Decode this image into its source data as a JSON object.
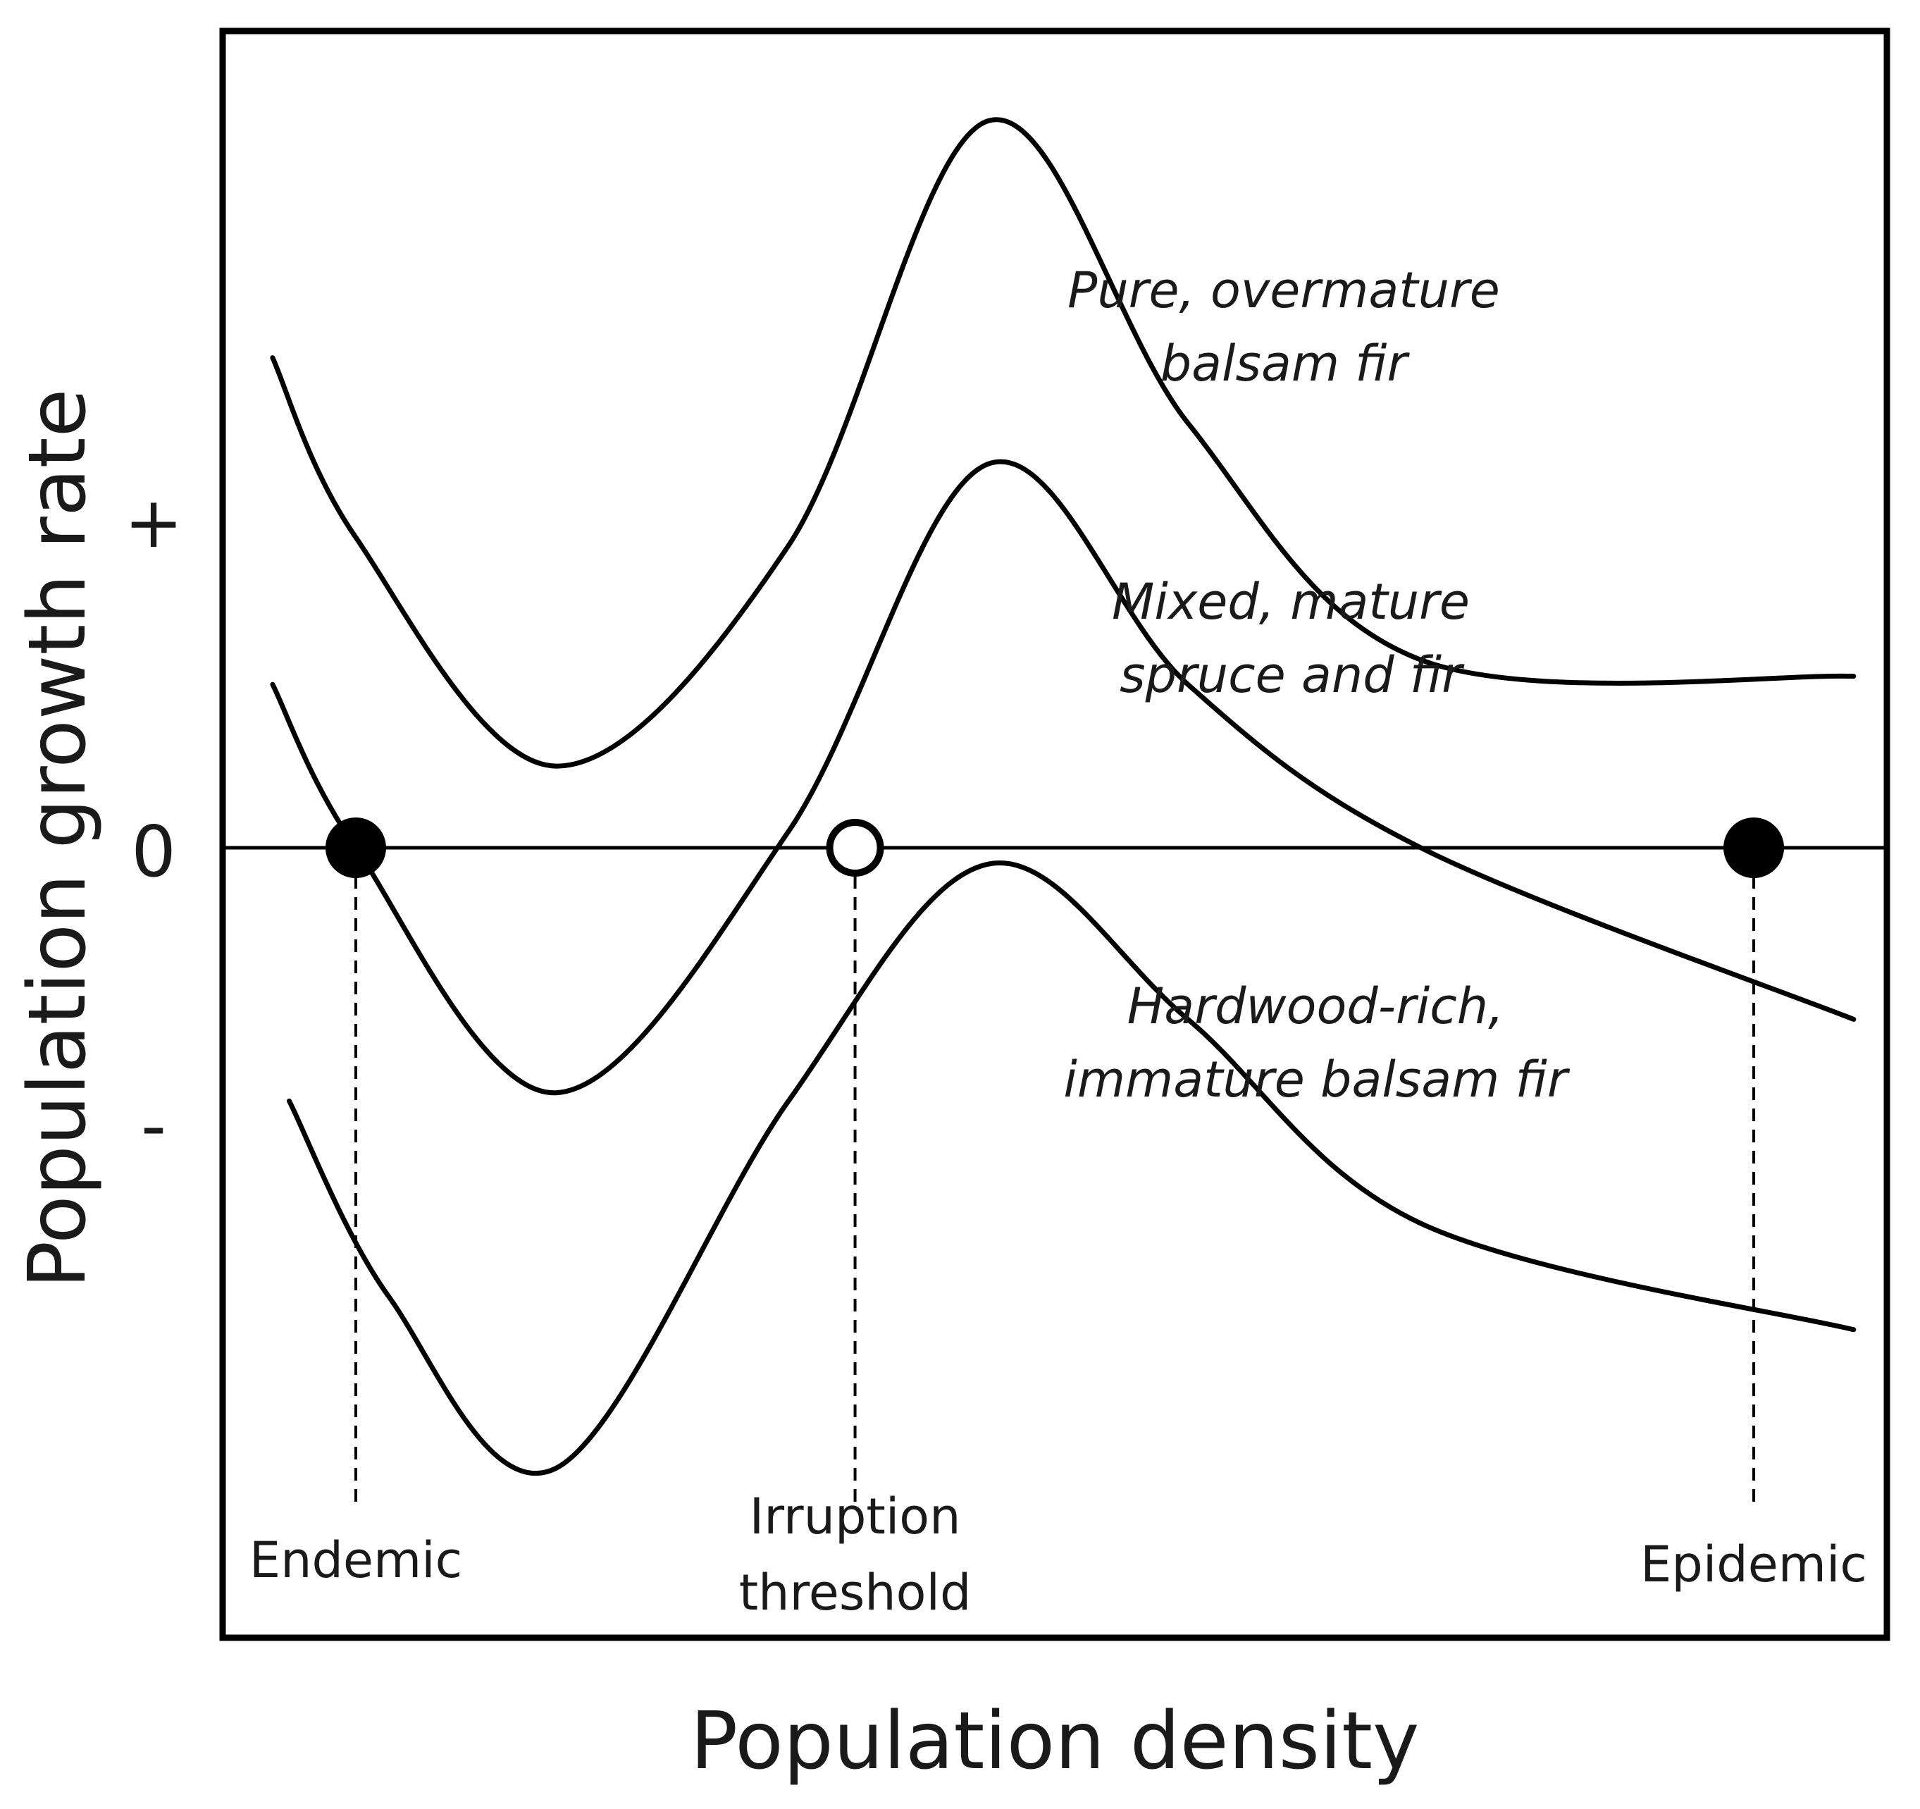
{
  "chart_data": {
    "type": "line",
    "title": "",
    "xlabel": "Population density",
    "ylabel": "Population growth rate",
    "y_ticks": [
      "+",
      "0",
      "-"
    ],
    "xlim": [
      0,
      100
    ],
    "ylim": [
      -100,
      100
    ],
    "grid": false,
    "legend": "none",
    "series": [
      {
        "name": "Pure, overmature balsam fir",
        "label_lines": [
          "Pure, overmature",
          "balsam fir"
        ],
        "points": [
          [
            3,
            60
          ],
          [
            8,
            38
          ],
          [
            20,
            10
          ],
          [
            34,
            37
          ],
          [
            46,
            89
          ],
          [
            58,
            52
          ],
          [
            72,
            23
          ],
          [
            98,
            21
          ]
        ]
      },
      {
        "name": "Mixed, mature spruce and fir",
        "label_lines": [
          "Mixed, mature",
          "spruce and fir"
        ],
        "points": [
          [
            3,
            20
          ],
          [
            8,
            0
          ],
          [
            20,
            -30
          ],
          [
            34,
            2
          ],
          [
            46,
            47
          ],
          [
            58,
            20
          ],
          [
            72,
            0
          ],
          [
            98,
            -21
          ]
        ]
      },
      {
        "name": "Hardwood-rich, immature balsam fir",
        "label_lines": [
          "Hardwood-rich,",
          "immature balsam fir"
        ],
        "points": [
          [
            4,
            -31
          ],
          [
            10,
            -55
          ],
          [
            20,
            -76
          ],
          [
            34,
            -31
          ],
          [
            46,
            -2
          ],
          [
            58,
            -21
          ],
          [
            72,
            -46
          ],
          [
            98,
            -59
          ]
        ]
      }
    ],
    "equilibria": [
      {
        "label_lines": [
          "Endemic"
        ],
        "x": 8,
        "y": 0,
        "stable": true
      },
      {
        "label_lines": [
          "Irruption",
          "threshold"
        ],
        "x": 38,
        "y": 0,
        "stable": false
      },
      {
        "label_lines": [
          "Epidemic"
        ],
        "x": 92,
        "y": 0,
        "stable": true
      }
    ],
    "colors": {
      "line": "#000000",
      "text": "#1a1a1a",
      "background": "#ffffff"
    }
  }
}
